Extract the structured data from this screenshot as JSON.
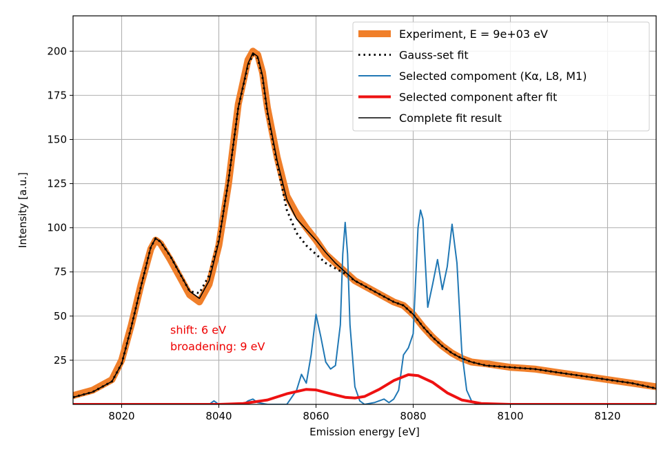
{
  "chart_data": {
    "type": "line",
    "title": "",
    "xlabel": "Emission energy [eV]",
    "ylabel": "Intensity [a.u.]",
    "xlim": [
      8010,
      8130
    ],
    "ylim": [
      0,
      220
    ],
    "xticks": [
      8020,
      8040,
      8060,
      8080,
      8100,
      8120
    ],
    "yticks": [
      25,
      50,
      75,
      100,
      125,
      150,
      175,
      200
    ],
    "grid": true,
    "legend_position": "top-right",
    "annotation": {
      "lines": [
        "shift: 6 eV",
        "broadening: 9 eV"
      ],
      "x": 8030,
      "y": 40,
      "color": "#ee0000"
    },
    "series": [
      {
        "name": "Experiment, E = 9e+03 eV",
        "color": "#f07f2a",
        "style": "thick",
        "x": [
          8010,
          8014,
          8018,
          8020,
          8022,
          8024,
          8026,
          8027,
          8028,
          8030,
          8032,
          8034,
          8036,
          8038,
          8040,
          8042,
          8044,
          8046,
          8047,
          8048,
          8049,
          8050,
          8052,
          8054,
          8056,
          8058,
          8060,
          8062,
          8064,
          8066,
          8068,
          8070,
          8072,
          8074,
          8076,
          8078,
          8080,
          8082,
          8084,
          8086,
          8088,
          8090,
          8092,
          8095,
          8100,
          8105,
          8110,
          8115,
          8120,
          8125,
          8130
        ],
        "values": [
          5,
          8,
          14,
          25,
          45,
          68,
          88,
          93,
          91,
          82,
          72,
          62,
          58,
          68,
          90,
          125,
          170,
          195,
          200,
          198,
          188,
          168,
          140,
          118,
          108,
          100,
          93,
          85,
          80,
          75,
          70,
          67,
          64,
          61,
          58,
          56,
          51,
          44,
          38,
          33,
          29,
          26,
          24,
          23,
          21,
          20,
          18,
          16,
          14,
          12,
          10
        ]
      },
      {
        "name": "Gauss-set fit",
        "color": "#000000",
        "style": "dotted",
        "x": [
          8010,
          8014,
          8018,
          8020,
          8022,
          8024,
          8026,
          8027,
          8028,
          8030,
          8032,
          8034,
          8036,
          8038,
          8040,
          8042,
          8044,
          8046,
          8047,
          8048,
          8049,
          8050,
          8052,
          8054,
          8056,
          8058,
          8060,
          8062,
          8064,
          8066,
          8068,
          8070,
          8072,
          8074,
          8076,
          8078,
          8080,
          8082,
          8084,
          8086,
          8088,
          8090,
          8092,
          8095,
          8100,
          8105,
          8110,
          8115,
          8120,
          8125,
          8130
        ],
        "values": [
          4,
          7,
          13,
          23,
          44,
          67,
          89,
          94,
          92,
          84,
          74,
          64,
          63,
          73,
          93,
          127,
          168,
          192,
          198,
          196,
          185,
          165,
          136,
          110,
          97,
          90,
          85,
          80,
          77,
          74,
          70,
          67,
          64,
          61,
          58,
          56,
          51,
          44,
          38,
          33,
          29,
          26,
          24,
          22,
          21,
          20,
          18,
          16,
          14,
          12,
          9
        ]
      },
      {
        "name": "Selected compoment (Kα, L8, M1)",
        "color": "#1f77b4",
        "style": "thin",
        "x": [
          8010,
          8038,
          8039,
          8040,
          8045,
          8046,
          8047,
          8048,
          8050,
          8054,
          8056,
          8057,
          8058,
          8059,
          8060,
          8061,
          8062,
          8063,
          8064,
          8065,
          8065.5,
          8066,
          8066.5,
          8067,
          8068,
          8069,
          8070,
          8072,
          8074,
          8075,
          8076,
          8077,
          8078,
          8079,
          8080,
          8081,
          8081.5,
          8082,
          8083,
          8084,
          8085,
          8086,
          8087,
          8088,
          8089,
          8090,
          8091,
          8092,
          8093,
          8095,
          8130
        ],
        "values": [
          0,
          0,
          2,
          0,
          0,
          2,
          3,
          1,
          0,
          0,
          8,
          17,
          12,
          28,
          51,
          38,
          24,
          20,
          22,
          45,
          85,
          103,
          85,
          45,
          10,
          2,
          0,
          1,
          3,
          1,
          3,
          8,
          28,
          32,
          40,
          100,
          110,
          105,
          55,
          68,
          82,
          65,
          78,
          102,
          80,
          30,
          8,
          2,
          0,
          0,
          0
        ]
      },
      {
        "name": "Selected component after fit",
        "color": "#ee1111",
        "style": "thick-red",
        "x": [
          8010,
          8040,
          8045,
          8050,
          8054,
          8058,
          8060,
          8063,
          8066,
          8068,
          8070,
          8073,
          8076,
          8079,
          8081,
          8084,
          8087,
          8090,
          8094,
          8100,
          8130
        ],
        "values": [
          0,
          0,
          0.5,
          2.5,
          6,
          8.5,
          8.2,
          6,
          4,
          3.6,
          4.5,
          8.5,
          13.5,
          16.8,
          16.3,
          12.5,
          6.5,
          2.5,
          0.5,
          0,
          0
        ]
      },
      {
        "name": "Complete fit result",
        "color": "#000000",
        "style": "solid",
        "x": [
          8010,
          8014,
          8018,
          8020,
          8022,
          8024,
          8026,
          8027,
          8028,
          8030,
          8032,
          8034,
          8036,
          8038,
          8040,
          8042,
          8044,
          8046,
          8047,
          8048,
          8049,
          8050,
          8052,
          8054,
          8056,
          8058,
          8060,
          8062,
          8064,
          8066,
          8068,
          8070,
          8072,
          8074,
          8076,
          8078,
          8080,
          8082,
          8084,
          8086,
          8088,
          8090,
          8092,
          8095,
          8100,
          8105,
          8110,
          8115,
          8120,
          8125,
          8130
        ],
        "values": [
          4,
          7,
          13,
          23,
          44,
          67,
          89,
          94,
          92,
          84,
          74,
          64,
          60,
          70,
          92,
          127,
          168,
          193,
          199,
          197,
          186,
          166,
          138,
          116,
          105,
          99,
          93,
          86,
          80,
          75,
          70,
          67,
          64,
          61,
          58,
          56,
          51,
          44,
          38,
          33,
          29,
          26,
          24,
          22,
          21,
          20,
          18,
          16,
          14,
          12,
          9
        ]
      }
    ]
  }
}
